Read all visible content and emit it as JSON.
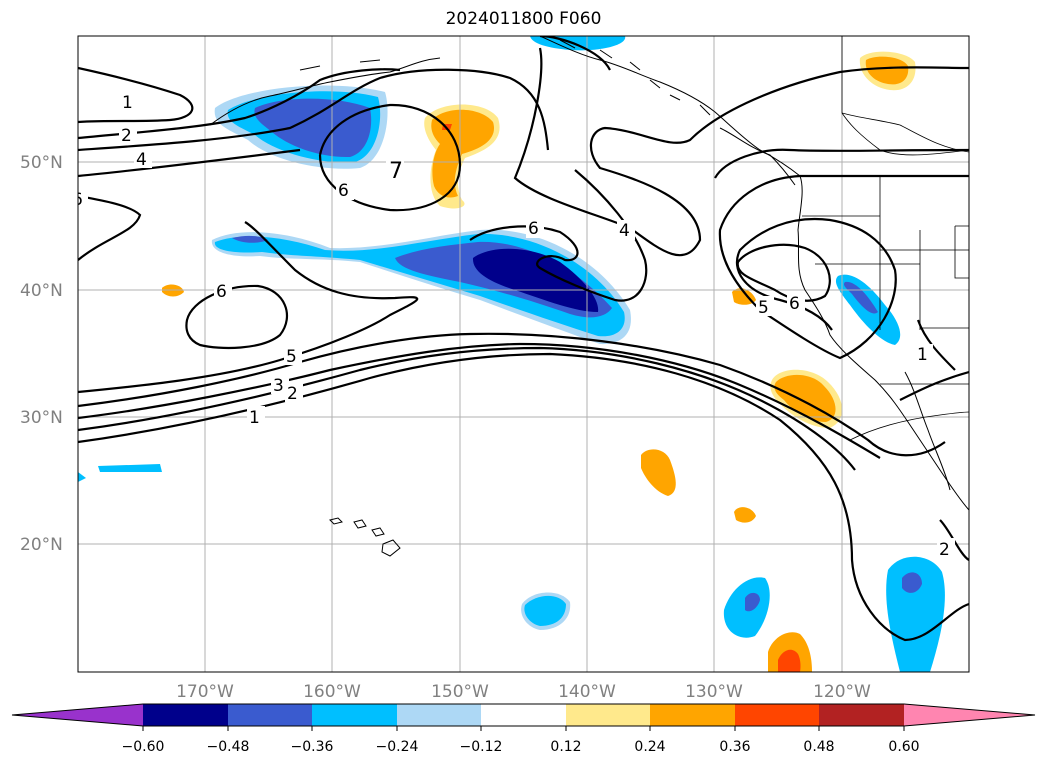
{
  "title": "2024011800 F060",
  "lon_labels": [
    "170°W",
    "160°W",
    "150°W",
    "140°W",
    "130°W",
    "120°W"
  ],
  "lat_labels": [
    "50°N",
    "40°N",
    "30°N",
    "20°N"
  ],
  "colorbar": {
    "ticks": [
      "−0.60",
      "−0.48",
      "−0.36",
      "−0.24",
      "−0.12",
      "0.12",
      "0.24",
      "0.36",
      "0.48",
      "0.60"
    ],
    "colors": [
      "#9932cc",
      "#00008b",
      "#3a5bcf",
      "#00bfff",
      "#add8f5",
      "#ffffff",
      "#ffe98c",
      "#ffa500",
      "#ff4500",
      "#b22222",
      "#ff85b0"
    ]
  },
  "contour_labels": [
    "1",
    "2",
    "4",
    "6",
    "7",
    "6",
    "6",
    "4",
    "5",
    "6",
    "5",
    "3",
    "2",
    "1",
    "1",
    "2",
    "6"
  ]
}
